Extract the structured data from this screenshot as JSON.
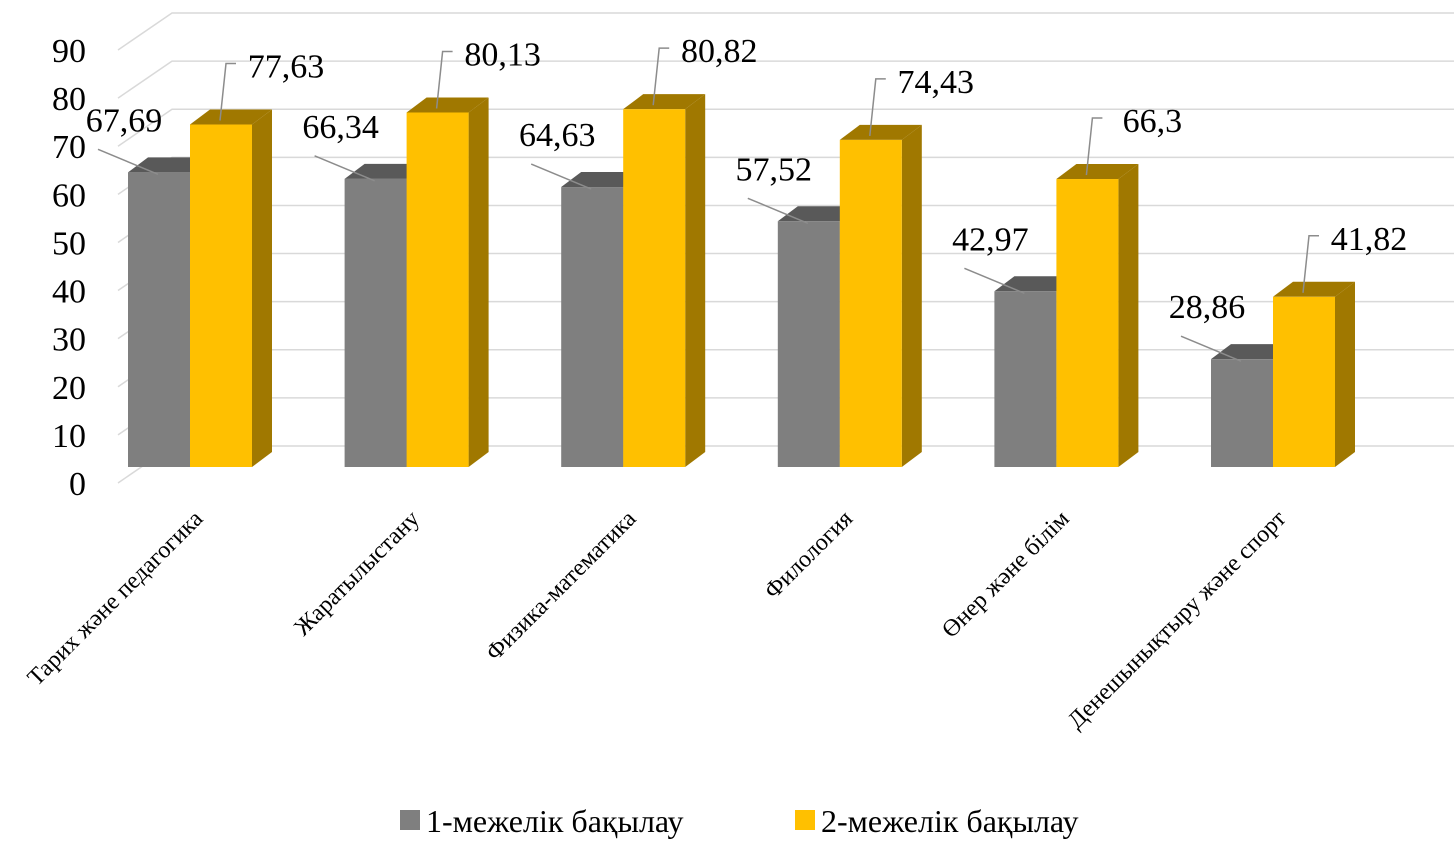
{
  "chart_data": {
    "type": "bar",
    "title": "",
    "xlabel": "",
    "ylabel": "",
    "ylim": [
      0,
      90
    ],
    "yticks": [
      0,
      10,
      20,
      30,
      40,
      50,
      60,
      70,
      80,
      90
    ],
    "grid": true,
    "legend_position": "bottom",
    "categories": [
      "Тарих және педагогика",
      "Жаратылыстану",
      "Физика-математика",
      "Филология",
      "Өнер және білім",
      "Денешынықтыру және спорт"
    ],
    "series": [
      {
        "name": "1-межелік  бақылау",
        "color": "#7f7f7f",
        "side_color": "#595959",
        "values": [
          67.69,
          66.34,
          64.63,
          57.52,
          42.97,
          28.86
        ],
        "value_labels": [
          "67,69",
          "66,34",
          "64,63",
          "57,52",
          "42,97",
          "28,86"
        ]
      },
      {
        "name": "2-межелік бақылау",
        "color": "#ffc000",
        "side_color": "#a07800",
        "values": [
          77.63,
          80.13,
          80.82,
          74.43,
          66.3,
          41.82
        ],
        "value_labels": [
          "77,63",
          "80,13",
          "80,82",
          "74,43",
          "66,3",
          "41,82"
        ]
      }
    ]
  }
}
